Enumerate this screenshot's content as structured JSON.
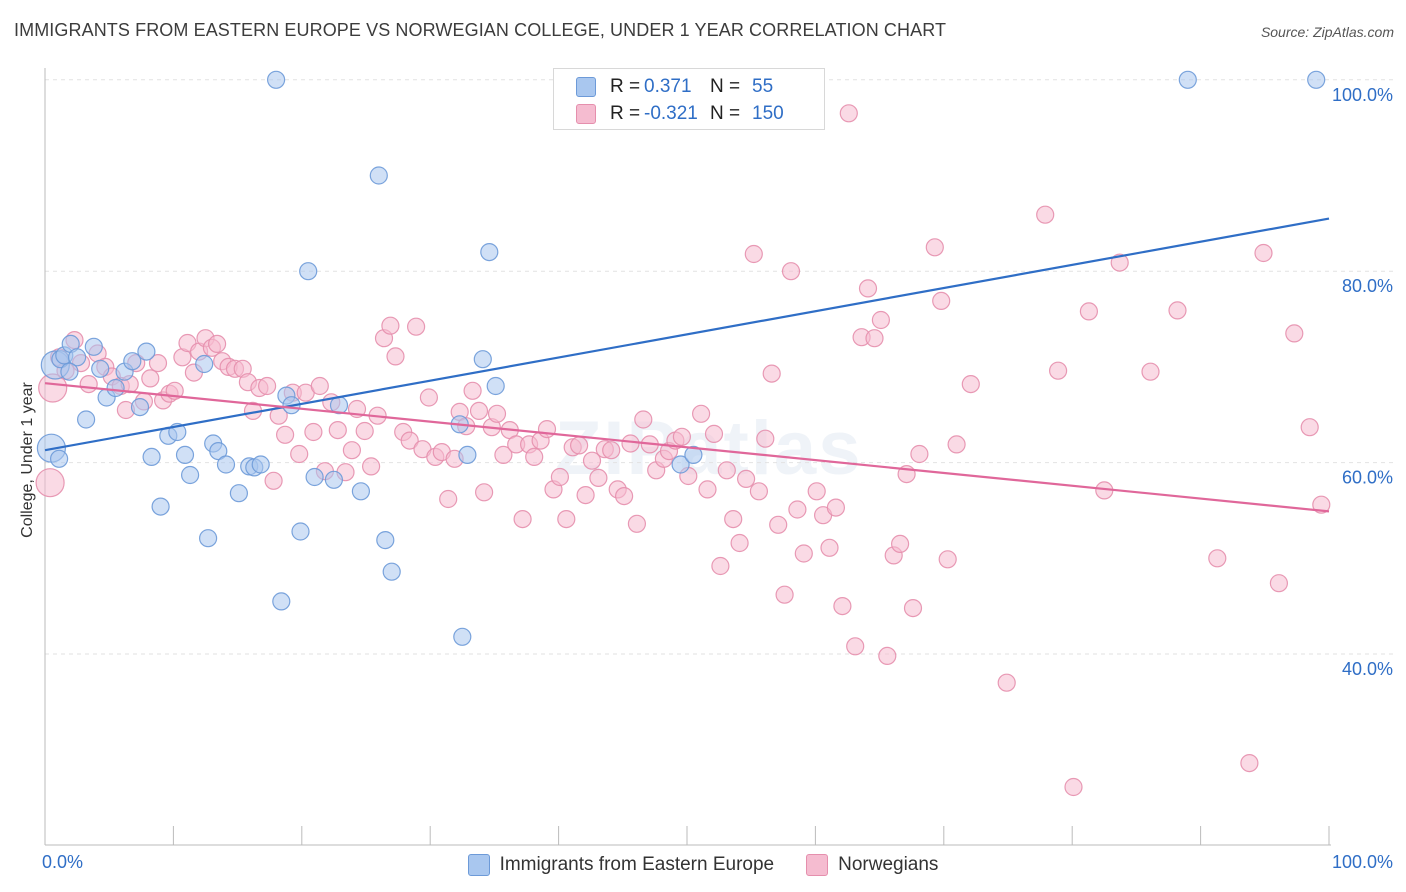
{
  "title": "IMMIGRANTS FROM EASTERN EUROPE VS NORWEGIAN COLLEGE, UNDER 1 YEAR CORRELATION CHART",
  "source": "Source: ZipAtlas.com",
  "watermark": "ZIPatlas",
  "legend_top": {
    "rows": [
      {
        "r_label": "R =",
        "r_value": "0.371",
        "n_label": "N =",
        "n_value": "55"
      },
      {
        "r_label": "R =",
        "r_value": "-0.321",
        "n_label": "N =",
        "n_value": "150"
      }
    ]
  },
  "legend_bottom": [
    "Immigrants from Eastern Europe",
    "Norwegians"
  ],
  "colors": {
    "blue_fill": "#a9c7ef",
    "blue_stroke": "#6d9ad8",
    "blue_line": "#2f6ec6",
    "pink_fill": "#f5bcd0",
    "pink_stroke": "#e58fad",
    "pink_line": "#e0679a",
    "tick_text": "#2f6ec6",
    "grid": "#e2e2e2"
  },
  "chart_data": {
    "type": "scatter",
    "title": "IMMIGRANTS FROM EASTERN EUROPE VS NORWEGIAN COLLEGE, UNDER 1 YEAR CORRELATION CHART",
    "xlabel": "",
    "ylabel": "College, Under 1 year",
    "xlim": [
      0,
      100
    ],
    "ylim": [
      20,
      102
    ],
    "x_tick_labels": [
      "0.0%",
      "100.0%"
    ],
    "y_ticks": [
      40,
      60,
      80,
      100
    ],
    "y_tick_labels": [
      "40.0%",
      "60.0%",
      "80.0%",
      "100.0%"
    ],
    "grid": true,
    "legend_position": "top-center",
    "series": [
      {
        "name": "Immigrants from Eastern Europe",
        "r": 0.371,
        "n": 55,
        "trend": {
          "x": [
            0,
            100
          ],
          "y": [
            61.3,
            85.5
          ]
        },
        "points": [
          [
            0.5,
            61.5
          ],
          [
            0.8,
            70.2
          ],
          [
            1.2,
            70.8
          ],
          [
            1.5,
            71.2
          ],
          [
            2.0,
            72.4
          ],
          [
            2.5,
            71.0
          ],
          [
            3.2,
            64.5
          ],
          [
            3.8,
            72.1
          ],
          [
            4.3,
            69.8
          ],
          [
            4.8,
            66.8
          ],
          [
            5.5,
            67.8
          ],
          [
            6.2,
            69.5
          ],
          [
            6.8,
            70.6
          ],
          [
            7.4,
            65.8
          ],
          [
            7.9,
            71.6
          ],
          [
            8.3,
            60.6
          ],
          [
            9.0,
            55.4
          ],
          [
            9.6,
            62.8
          ],
          [
            10.3,
            63.2
          ],
          [
            10.9,
            60.8
          ],
          [
            11.3,
            58.7
          ],
          [
            12.7,
            52.1
          ],
          [
            13.1,
            62.0
          ],
          [
            13.5,
            61.2
          ],
          [
            14.1,
            59.8
          ],
          [
            12.4,
            70.3
          ],
          [
            15.1,
            56.8
          ],
          [
            15.9,
            59.6
          ],
          [
            16.3,
            59.5
          ],
          [
            16.8,
            59.8
          ],
          [
            18.0,
            100.0
          ],
          [
            18.4,
            45.5
          ],
          [
            18.8,
            67.0
          ],
          [
            19.2,
            66.0
          ],
          [
            19.9,
            52.8
          ],
          [
            20.5,
            80.0
          ],
          [
            21.0,
            58.5
          ],
          [
            22.5,
            58.2
          ],
          [
            22.9,
            66.0
          ],
          [
            24.6,
            57.0
          ],
          [
            26.0,
            90.0
          ],
          [
            26.5,
            51.9
          ],
          [
            27.0,
            48.6
          ],
          [
            32.3,
            64.0
          ],
          [
            32.5,
            41.8
          ],
          [
            32.9,
            60.8
          ],
          [
            34.1,
            70.8
          ],
          [
            34.6,
            82.0
          ],
          [
            35.1,
            68.0
          ],
          [
            49.5,
            59.8
          ],
          [
            50.5,
            60.8
          ],
          [
            89.0,
            100.0
          ],
          [
            99.0,
            100.0
          ],
          [
            1.1,
            60.4
          ],
          [
            1.9,
            69.5
          ]
        ]
      },
      {
        "name": "Norwegians",
        "r": -0.321,
        "n": 150,
        "trend": {
          "x": [
            0,
            100
          ],
          "y": [
            68.3,
            54.9
          ]
        },
        "points": [
          [
            0.4,
            57.9
          ],
          [
            0.6,
            67.8
          ],
          [
            1.1,
            71.0
          ],
          [
            1.6,
            69.6
          ],
          [
            2.3,
            72.8
          ],
          [
            2.8,
            70.4
          ],
          [
            3.4,
            68.2
          ],
          [
            4.1,
            71.4
          ],
          [
            4.7,
            70.0
          ],
          [
            5.2,
            69.0
          ],
          [
            5.9,
            68.0
          ],
          [
            6.3,
            65.5
          ],
          [
            6.6,
            68.2
          ],
          [
            7.1,
            70.4
          ],
          [
            7.7,
            66.4
          ],
          [
            8.2,
            68.8
          ],
          [
            8.8,
            70.4
          ],
          [
            9.2,
            66.5
          ],
          [
            9.7,
            67.2
          ],
          [
            10.1,
            67.5
          ],
          [
            10.7,
            71.0
          ],
          [
            11.1,
            72.5
          ],
          [
            11.6,
            69.4
          ],
          [
            12.0,
            71.6
          ],
          [
            12.5,
            73.0
          ],
          [
            13.0,
            72.0
          ],
          [
            13.4,
            72.4
          ],
          [
            13.8,
            70.6
          ],
          [
            14.3,
            70.0
          ],
          [
            14.8,
            69.8
          ],
          [
            15.4,
            69.8
          ],
          [
            15.8,
            68.4
          ],
          [
            16.2,
            65.4
          ],
          [
            16.7,
            67.8
          ],
          [
            17.3,
            68.0
          ],
          [
            17.8,
            58.1
          ],
          [
            18.2,
            64.9
          ],
          [
            18.7,
            62.9
          ],
          [
            19.3,
            67.3
          ],
          [
            19.8,
            60.9
          ],
          [
            20.3,
            67.3
          ],
          [
            20.9,
            63.2
          ],
          [
            21.4,
            68.0
          ],
          [
            21.8,
            59.1
          ],
          [
            22.3,
            66.3
          ],
          [
            22.8,
            63.4
          ],
          [
            23.4,
            59.0
          ],
          [
            23.9,
            61.3
          ],
          [
            24.3,
            65.6
          ],
          [
            24.9,
            63.3
          ],
          [
            25.4,
            59.6
          ],
          [
            25.9,
            64.9
          ],
          [
            26.4,
            73.0
          ],
          [
            26.9,
            74.3
          ],
          [
            27.3,
            71.1
          ],
          [
            27.9,
            63.2
          ],
          [
            28.4,
            62.3
          ],
          [
            28.9,
            74.2
          ],
          [
            29.4,
            61.4
          ],
          [
            29.9,
            66.8
          ],
          [
            30.4,
            60.6
          ],
          [
            30.9,
            61.1
          ],
          [
            31.4,
            56.2
          ],
          [
            31.9,
            60.4
          ],
          [
            32.3,
            65.3
          ],
          [
            32.8,
            63.8
          ],
          [
            33.3,
            67.5
          ],
          [
            33.8,
            65.4
          ],
          [
            34.2,
            56.9
          ],
          [
            34.8,
            63.7
          ],
          [
            35.2,
            65.1
          ],
          [
            35.7,
            60.8
          ],
          [
            36.2,
            63.4
          ],
          [
            36.7,
            61.9
          ],
          [
            37.2,
            54.1
          ],
          [
            37.7,
            61.9
          ],
          [
            38.1,
            60.6
          ],
          [
            38.6,
            62.3
          ],
          [
            39.1,
            63.5
          ],
          [
            39.6,
            57.2
          ],
          [
            40.1,
            58.5
          ],
          [
            40.6,
            54.1
          ],
          [
            41.1,
            61.6
          ],
          [
            41.6,
            61.8
          ],
          [
            42.1,
            56.6
          ],
          [
            42.6,
            60.2
          ],
          [
            43.1,
            58.4
          ],
          [
            43.6,
            61.4
          ],
          [
            44.1,
            61.3
          ],
          [
            44.6,
            57.2
          ],
          [
            45.1,
            56.5
          ],
          [
            45.6,
            62.0
          ],
          [
            46.1,
            53.6
          ],
          [
            46.6,
            64.5
          ],
          [
            47.1,
            61.9
          ],
          [
            47.6,
            59.2
          ],
          [
            48.2,
            60.4
          ],
          [
            48.6,
            61.2
          ],
          [
            49.1,
            62.3
          ],
          [
            49.6,
            62.7
          ],
          [
            50.1,
            58.6
          ],
          [
            51.1,
            65.1
          ],
          [
            51.6,
            57.2
          ],
          [
            52.1,
            63.0
          ],
          [
            52.6,
            49.2
          ],
          [
            53.1,
            59.2
          ],
          [
            53.6,
            54.1
          ],
          [
            54.1,
            51.6
          ],
          [
            54.6,
            58.3
          ],
          [
            55.2,
            81.8
          ],
          [
            55.6,
            57.0
          ],
          [
            56.1,
            62.5
          ],
          [
            56.6,
            69.3
          ],
          [
            57.1,
            53.5
          ],
          [
            57.6,
            46.2
          ],
          [
            58.1,
            80.0
          ],
          [
            58.6,
            55.1
          ],
          [
            59.1,
            50.5
          ],
          [
            60.1,
            57.0
          ],
          [
            60.6,
            54.5
          ],
          [
            61.1,
            51.1
          ],
          [
            61.6,
            55.3
          ],
          [
            62.1,
            45.0
          ],
          [
            62.6,
            96.5
          ],
          [
            63.1,
            40.8
          ],
          [
            63.6,
            73.1
          ],
          [
            64.1,
            78.2
          ],
          [
            64.6,
            73.0
          ],
          [
            65.1,
            74.9
          ],
          [
            65.6,
            39.8
          ],
          [
            66.1,
            50.3
          ],
          [
            66.6,
            51.5
          ],
          [
            67.1,
            58.8
          ],
          [
            67.6,
            44.8
          ],
          [
            68.1,
            60.9
          ],
          [
            69.3,
            82.5
          ],
          [
            69.8,
            76.9
          ],
          [
            70.3,
            49.9
          ],
          [
            71.0,
            61.9
          ],
          [
            72.1,
            68.2
          ],
          [
            74.9,
            37.0
          ],
          [
            77.9,
            85.9
          ],
          [
            78.9,
            69.6
          ],
          [
            80.1,
            26.1
          ],
          [
            81.3,
            75.8
          ],
          [
            82.5,
            57.1
          ],
          [
            83.7,
            80.9
          ],
          [
            86.1,
            69.5
          ],
          [
            88.2,
            75.9
          ],
          [
            91.3,
            50.0
          ],
          [
            93.8,
            28.6
          ],
          [
            94.9,
            81.9
          ],
          [
            96.1,
            47.4
          ],
          [
            97.3,
            73.5
          ],
          [
            98.5,
            63.7
          ],
          [
            99.4,
            55.6
          ]
        ]
      }
    ]
  }
}
